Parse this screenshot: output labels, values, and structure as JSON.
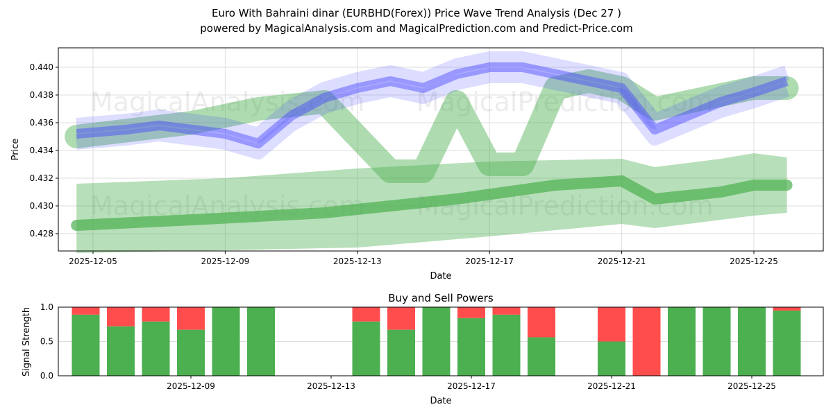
{
  "title": "Euro With Bahraini dinar (EURBHD(Forex)) Price Wave Trend Analysis (Dec 27 )",
  "subtitle": "powered by MagicalAnalysis.com and MagicalPrediction.com and Predict-Price.com",
  "watermarks": [
    "MagicalAnalysis.com",
    "MagicalPrediction.com"
  ],
  "chart_data": [
    {
      "type": "line",
      "title": "",
      "xlabel": "Date",
      "ylabel": "Price",
      "ylim": [
        0.4267,
        0.4414
      ],
      "xticks": [
        "2025-12-05",
        "2025-12-09",
        "2025-12-13",
        "2025-12-17",
        "2025-12-21",
        "2025-12-25"
      ],
      "xtick_days": [
        0,
        4,
        8,
        12,
        16,
        20
      ],
      "yticks": [
        "0.428",
        "0.430",
        "0.432",
        "0.434",
        "0.436",
        "0.438",
        "0.440"
      ],
      "series": [
        {
          "name": "price wave (blue)",
          "color": "#4444ff",
          "x_days": [
            -0.5,
            1,
            2,
            3,
            4,
            5,
            6,
            7,
            8,
            9,
            10,
            11,
            12,
            13,
            14,
            15,
            16,
            17,
            18,
            19,
            20,
            21
          ],
          "values": [
            0.4352,
            0.4355,
            0.4358,
            0.4355,
            0.4352,
            0.4345,
            0.4365,
            0.4378,
            0.4385,
            0.439,
            0.4385,
            0.4395,
            0.44,
            0.44,
            0.4395,
            0.439,
            0.4385,
            0.4355,
            0.4365,
            0.4375,
            0.4382,
            0.439
          ]
        },
        {
          "name": "upper wave (green)",
          "color": "#4caf50",
          "x_days": [
            -0.5,
            3,
            5,
            7,
            9,
            10,
            11,
            12,
            13,
            14,
            15,
            16,
            17,
            20,
            21
          ],
          "values": [
            0.435,
            0.436,
            0.437,
            0.4375,
            0.4325,
            0.4325,
            0.4375,
            0.433,
            0.433,
            0.4385,
            0.439,
            0.4385,
            0.437,
            0.4385,
            0.4385
          ]
        },
        {
          "name": "lower trend (green)",
          "color": "#4caf50",
          "x_days": [
            -0.5,
            3,
            7,
            11,
            14,
            16,
            17,
            19,
            20,
            21
          ],
          "values": [
            0.4286,
            0.429,
            0.4295,
            0.4305,
            0.4315,
            0.4318,
            0.4305,
            0.431,
            0.4315,
            0.4315
          ]
        },
        {
          "name": "lower band top",
          "color": "#4caf50",
          "x_days": [
            -0.5,
            4,
            8,
            12,
            16,
            17,
            19,
            20,
            21
          ],
          "values": [
            0.4316,
            0.432,
            0.4327,
            0.4332,
            0.4334,
            0.4328,
            0.4334,
            0.4338,
            0.4335
          ]
        },
        {
          "name": "lower band bottom",
          "color": "#4caf50",
          "x_days": [
            -0.5,
            4,
            8,
            12,
            16,
            17,
            19,
            20,
            21
          ],
          "values": [
            0.4266,
            0.4268,
            0.427,
            0.4278,
            0.4287,
            0.4284,
            0.429,
            0.4293,
            0.4295
          ]
        }
      ]
    },
    {
      "type": "bar",
      "title": "Buy and Sell Powers",
      "xlabel": "Date",
      "ylabel": "Signal Strength",
      "ylim": [
        0,
        1
      ],
      "yticks": [
        "0.0",
        "0.5",
        "1.0"
      ],
      "xticks": [
        "2025-12-09",
        "2025-12-13",
        "2025-12-17",
        "2025-12-21",
        "2025-12-25"
      ],
      "xtick_days": [
        4,
        8,
        12,
        16,
        20
      ],
      "bar_days": [
        1,
        2,
        3,
        4,
        5,
        6,
        9,
        10,
        11,
        12,
        13,
        14,
        16,
        17,
        18,
        19,
        20,
        21
      ],
      "buy": [
        0.89,
        0.72,
        0.79,
        0.67,
        1,
        1,
        0.79,
        0.67,
        1,
        0.84,
        0.89,
        0.56,
        0.5,
        0,
        1,
        1,
        1,
        0.95
      ],
      "buy_color": "#4caf50",
      "sell_color": "#ff4d4d"
    }
  ]
}
